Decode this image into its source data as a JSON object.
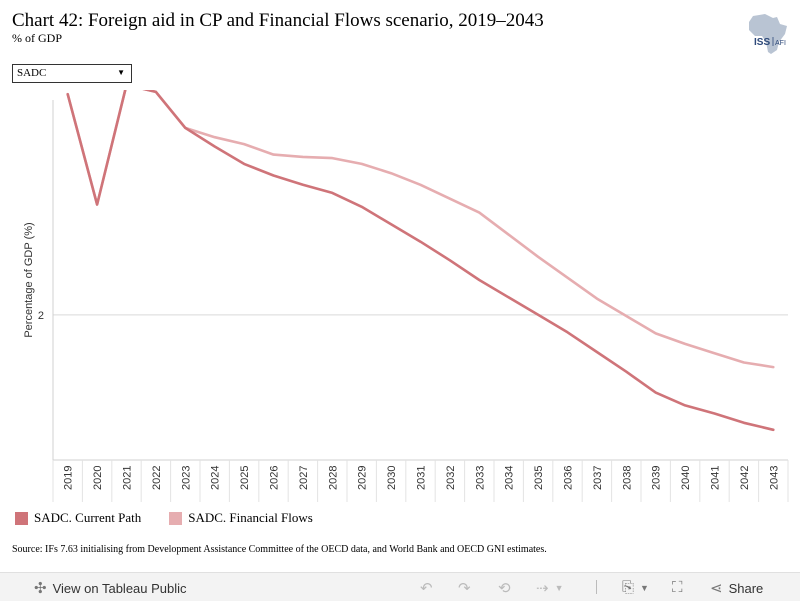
{
  "title": "Chart 42: Foreign aid in CP and Financial Flows scenario, 2019–2043",
  "subtitle": "% of GDP",
  "logo": {
    "text": "ISS",
    "suffix": "AFI"
  },
  "dropdown": {
    "selected": "SADC"
  },
  "colors": {
    "current_path": "#cf7479",
    "financial_flows": "#e6adb0",
    "grid": "#d9d9d9"
  },
  "chart_data": {
    "type": "line",
    "ylabel": "Percentage of GDP (%)",
    "y_ticks": [
      "2"
    ],
    "ylim": [
      0.75,
      3.85
    ],
    "x": [
      "2019",
      "2020",
      "2021",
      "2022",
      "2023",
      "2024",
      "2025",
      "2026",
      "2027",
      "2028",
      "2029",
      "2030",
      "2031",
      "2032",
      "2033",
      "2034",
      "2035",
      "2036",
      "2037",
      "2038",
      "2039",
      "2040",
      "2041",
      "2042",
      "2043"
    ],
    "series": [
      {
        "name": "SADC. Current Path",
        "values": [
          3.9,
          2.95,
          3.98,
          3.92,
          3.61,
          3.45,
          3.3,
          3.2,
          3.12,
          3.05,
          2.93,
          2.78,
          2.63,
          2.47,
          2.3,
          2.15,
          2.0,
          1.85,
          1.68,
          1.51,
          1.33,
          1.22,
          1.15,
          1.07,
          1.01
        ]
      },
      {
        "name": "SADC. Financial Flows",
        "values": [
          3.9,
          2.95,
          3.98,
          3.92,
          3.61,
          3.53,
          3.47,
          3.38,
          3.36,
          3.35,
          3.3,
          3.22,
          3.12,
          3.0,
          2.88,
          2.69,
          2.5,
          2.32,
          2.14,
          1.99,
          1.84,
          1.75,
          1.67,
          1.59,
          1.55
        ]
      }
    ]
  },
  "source": "Source: IFs 7.63 initialising from Development Assistance Committee of the OECD data, and World Bank and OECD GNI estimates.",
  "toolbar": {
    "view_label": "View on Tableau Public",
    "share_label": "Share"
  }
}
